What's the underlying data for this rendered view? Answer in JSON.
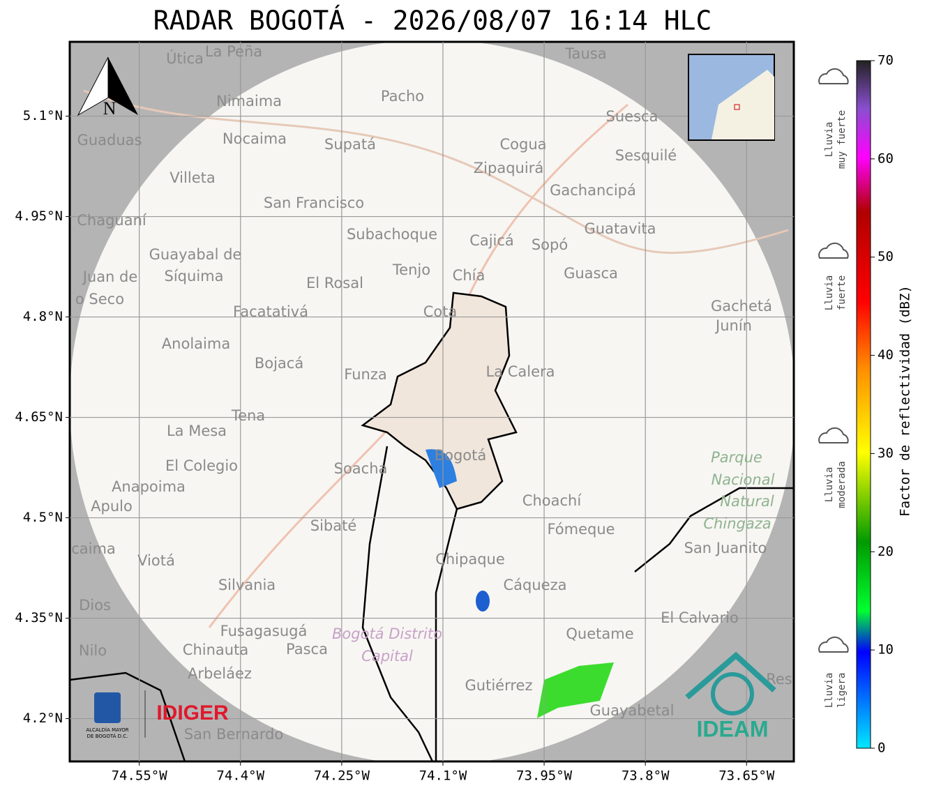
{
  "title": "RADAR BOGOTÁ - 2026/08/07 16:14 HLC",
  "map": {
    "xlim": [
      -74.653,
      -73.58
    ],
    "ylim": [
      4.136,
      5.211
    ],
    "xticks": [
      {
        "value": -74.55,
        "label": "74.55°W"
      },
      {
        "value": -74.4,
        "label": "74.4°W"
      },
      {
        "value": -74.25,
        "label": "74.25°W"
      },
      {
        "value": -74.1,
        "label": "74.1°W"
      },
      {
        "value": -73.95,
        "label": "73.95°W"
      },
      {
        "value": -73.8,
        "label": "73.8°W"
      },
      {
        "value": -73.65,
        "label": "73.65°W"
      }
    ],
    "yticks": [
      {
        "value": 5.1,
        "label": "5.1°N"
      },
      {
        "value": 4.95,
        "label": "4.95°N"
      },
      {
        "value": 4.8,
        "label": "4.8°N"
      },
      {
        "value": 4.65,
        "label": "4.65°N"
      },
      {
        "value": 4.5,
        "label": "4.5°N"
      },
      {
        "value": 4.35,
        "label": "4.35°N"
      },
      {
        "value": 4.2,
        "label": "4.2°N"
      }
    ],
    "north": "N",
    "places": [
      "Útica",
      "La Peña",
      "Tausa",
      "Pacho",
      "Nimaima",
      "Guaduas",
      "Nocaima",
      "Supatá",
      "Cogua",
      "Suesca",
      "Sesquilé",
      "Zipaquirá",
      "Villeta",
      "Gachancipá",
      "San Francisco",
      "Chaguaní",
      "Guatavita",
      "Subachoque",
      "Cajicá",
      "Sopó",
      "Guayabal de",
      "Síquima",
      "Tenjo",
      "Chía",
      "Guasca",
      "Juan de",
      "El Rosal",
      "o Seco",
      "Gachetá",
      "Facatativá",
      "Cota",
      "Junín",
      "Anolaima",
      "Bojacá",
      "Funza",
      "La Calera",
      "Tena",
      "La Mesa",
      "Bogotá",
      "El Colegio",
      "Soacha",
      "Anapoima",
      "Apulo",
      "Choachí",
      "Sibaté",
      "Fómeque",
      "San Juanito",
      "caima",
      "Viotá",
      "Chipaque",
      "Silvania",
      "Cáqueza",
      "Dios",
      "El Calvario",
      "Fusagasugá",
      "Quetame",
      "Nilo",
      "Chinauta",
      "Pasca",
      "Arbeláez",
      "Gutiérrez",
      "Res",
      "Guayabetal",
      "San Bernardo"
    ],
    "park": [
      "Parque",
      "Nacional",
      "Natural",
      "Chingaza"
    ],
    "district": [
      "Bogotá Distrito",
      "Capital"
    ]
  },
  "logos": {
    "alcaldia": [
      "ALCALDÍA MAYOR",
      "DE BOGOTÁ D.C."
    ],
    "idiger": "IDIGER",
    "ideam": "IDEAM"
  },
  "colorbar": {
    "label": "Factor de reflectividad (dBZ)",
    "lim": [
      0,
      70
    ],
    "ticks": [
      0,
      10,
      20,
      30,
      40,
      50,
      60,
      70
    ],
    "rain_labels": [
      [
        "Lluvia",
        "muy fuerte"
      ],
      [
        "Lluvia",
        "fuerte"
      ],
      [
        "Lluvia",
        "moderada"
      ],
      [
        "Lluvia",
        "ligera"
      ]
    ]
  }
}
